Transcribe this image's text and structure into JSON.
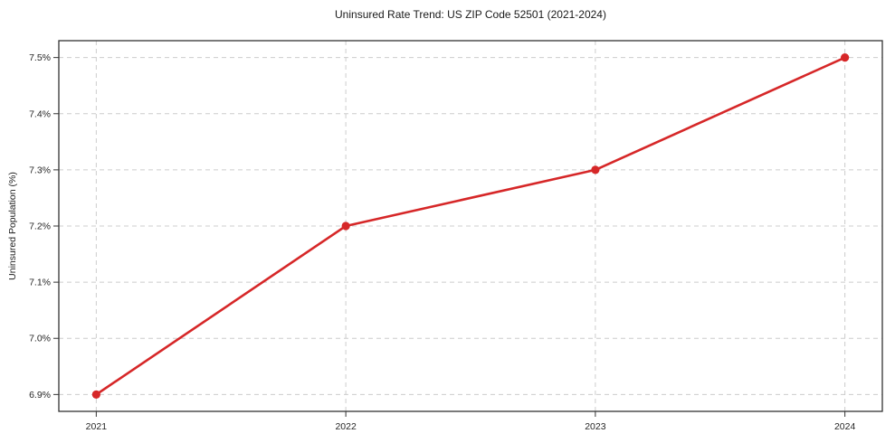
{
  "chart_data": {
    "type": "line",
    "title": "Uninsured Rate Trend: US ZIP Code 52501 (2021-2024)",
    "xlabel": "",
    "ylabel": "Uninsured Population (%)",
    "categories": [
      "2021",
      "2022",
      "2023",
      "2024"
    ],
    "x": [
      2021,
      2022,
      2023,
      2024
    ],
    "series": [
      {
        "name": "Uninsured Rate",
        "values": [
          6.9,
          7.2,
          7.3,
          7.5
        ]
      }
    ],
    "yticks": [
      6.9,
      7.0,
      7.1,
      7.2,
      7.3,
      7.4,
      7.5
    ],
    "ytick_labels": [
      "6.9%",
      "7.0%",
      "7.1%",
      "7.2%",
      "7.3%",
      "7.4%",
      "7.5%"
    ],
    "ylim": [
      6.87,
      7.53
    ],
    "xlim": [
      2020.85,
      2024.15
    ],
    "grid": true,
    "legend": "none",
    "line_color": "#d62728",
    "marker_color": "#d62728",
    "grid_color": "#cccccc",
    "axis_color": "#333333"
  }
}
